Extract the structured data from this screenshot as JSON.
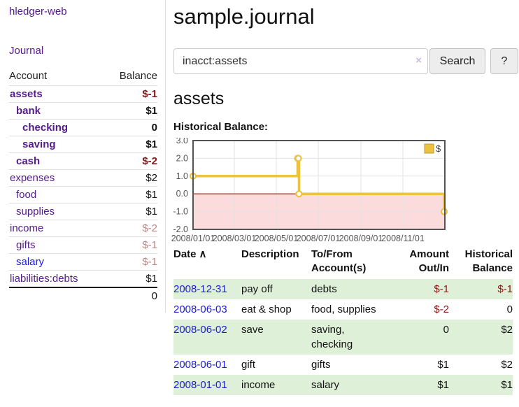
{
  "app": {
    "title": "hledger-web"
  },
  "colors": {
    "link_purple": "#551a8b",
    "link_blue": "#1b1bd1",
    "negative_strong": "#8b1515",
    "negative_muted": "#c08383",
    "row_stripe_green": "#dff0d8",
    "chart_line_gold": "#edc240",
    "chart_negative_fill": "#fbdbdb",
    "chart_zero_line": "#aa0000",
    "chart_border": "#545454"
  },
  "sidebar": {
    "nav": {
      "journal_label": "Journal"
    },
    "table": {
      "headers": [
        "Account",
        "Balance"
      ],
      "accounts": [
        {
          "name": "assets",
          "depth": 1,
          "bold": true,
          "balance": "$-1"
        },
        {
          "name": "bank",
          "depth": 2,
          "bold": true,
          "balance": "$1"
        },
        {
          "name": "checking",
          "depth": 3,
          "bold": true,
          "balance": "0"
        },
        {
          "name": "saving",
          "depth": 3,
          "bold": true,
          "balance": "$1"
        },
        {
          "name": "cash",
          "depth": 2,
          "bold": true,
          "balance": "$-2"
        },
        {
          "name": "expenses",
          "depth": 1,
          "bold": false,
          "balance": "$2"
        },
        {
          "name": "food",
          "depth": 2,
          "bold": false,
          "balance": "$1"
        },
        {
          "name": "supplies",
          "depth": 2,
          "bold": false,
          "balance": "$1"
        },
        {
          "name": "income",
          "depth": 1,
          "bold": false,
          "balance": "$-2"
        },
        {
          "name": "gifts",
          "depth": 2,
          "bold": false,
          "balance": "$-1"
        },
        {
          "name": "salary",
          "depth": 2,
          "bold": false,
          "balance": "$-1",
          "link": "blue"
        },
        {
          "name": "liabilities:debts",
          "depth": 1,
          "bold": false,
          "balance": "$1"
        }
      ],
      "total": "0"
    }
  },
  "main": {
    "title": "sample.journal",
    "search": {
      "value": "inacct:assets",
      "clear_icon": "×",
      "button_label": "Search",
      "help_label": "?"
    },
    "account_heading": "assets",
    "chart_label": "Historical Balance:",
    "register": {
      "headers": {
        "date": "Date",
        "sort_indicator": "∧",
        "description": "Description",
        "accounts": "To/From Account(s)",
        "amount": "Amount Out/In",
        "balance": "Historical Balance"
      },
      "rows": [
        {
          "date": "2008-12-31",
          "description": "pay off",
          "accounts": "debts",
          "amount": "$-1",
          "balance": "$-1"
        },
        {
          "date": "2008-06-03",
          "description": "eat & shop",
          "accounts": "food, supplies",
          "amount": "$-2",
          "balance": "0"
        },
        {
          "date": "2008-06-02",
          "description": "save",
          "accounts": "saving, checking",
          "amount": "0",
          "balance": "$2"
        },
        {
          "date": "2008-06-01",
          "description": "gift",
          "accounts": "gifts",
          "amount": "$1",
          "balance": "$2"
        },
        {
          "date": "2008-01-01",
          "description": "income",
          "accounts": "salary",
          "amount": "$1",
          "balance": "$1"
        }
      ]
    }
  },
  "chart_data": {
    "type": "line",
    "step": true,
    "title": "Historical Balance:",
    "series": [
      {
        "name": "$",
        "color": "#edc240",
        "points": [
          [
            "2008-01-01",
            1
          ],
          [
            "2008-06-01",
            2
          ],
          [
            "2008-06-02",
            2
          ],
          [
            "2008-06-03",
            0
          ],
          [
            "2008-12-31",
            -1
          ]
        ]
      }
    ],
    "ylim": [
      -2,
      3
    ],
    "yticks": [
      3.0,
      2.0,
      1.0,
      0.0,
      -1.0,
      -2.0
    ],
    "xtick_labels": [
      "2008/01/01",
      "2008/03/01",
      "2008/05/01",
      "2008/07/01",
      "2008/09/01",
      "2008/11/01"
    ],
    "xtick_dates": [
      "2008-01-01",
      "2008-03-01",
      "2008-05-01",
      "2008-07-01",
      "2008-09-01",
      "2008-11-01"
    ],
    "xdomain": [
      "2008-01-01",
      "2009-01-01"
    ],
    "grid": true,
    "legend_position": "top-right",
    "negative_region_fill": "#fbdbdb",
    "zero_line_color": "#aa0000"
  }
}
